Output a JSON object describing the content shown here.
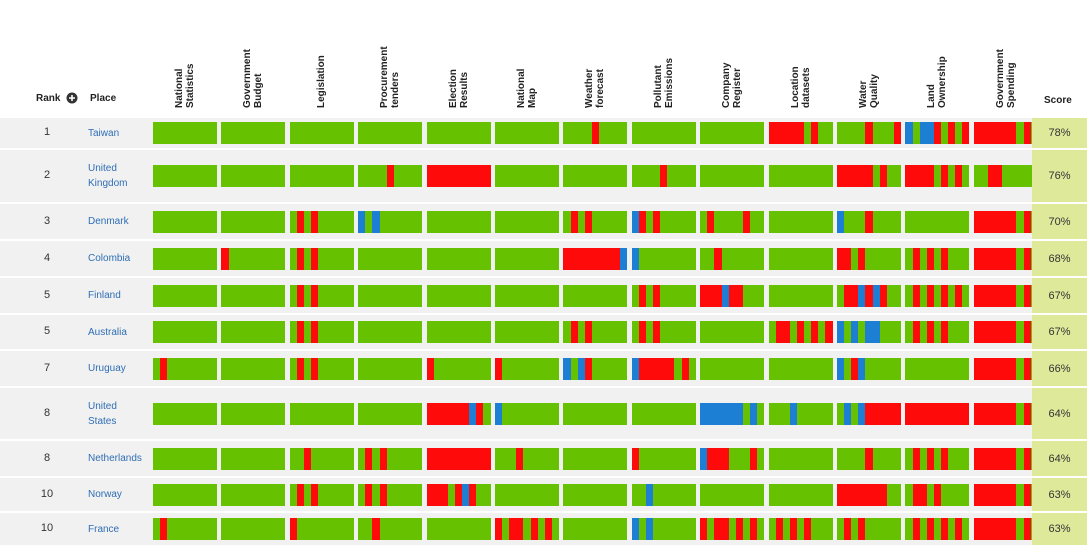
{
  "header": {
    "rank": "Rank",
    "place": "Place",
    "score": "Score",
    "columns": [
      [
        "National",
        "Statistics"
      ],
      [
        "Government",
        "Budget"
      ],
      [
        "Legislation"
      ],
      [
        "Procurement",
        "tenders"
      ],
      [
        "Election",
        "Results"
      ],
      [
        "National",
        "Map"
      ],
      [
        "Weather",
        "forecast"
      ],
      [
        "Pollutant",
        "Emissions"
      ],
      [
        "Company",
        "Register"
      ],
      [
        "Location",
        "datasets"
      ],
      [
        "Water",
        "Quality"
      ],
      [
        "Land",
        "Ownership"
      ],
      [
        "Government",
        "Spending"
      ]
    ]
  },
  "palette": {
    "g": "#66c200",
    "r": "#ff0a0a",
    "b": "#1d7fd3"
  },
  "table": {
    "rows": [
      {
        "rank": 1,
        "place": "Taiwan",
        "score": "78%",
        "cells": [
          "ggggggggg",
          "ggggggggg",
          "ggggggggg",
          "ggggggggg",
          "ggggggggg",
          "ggggggggg",
          "ggggrgggg",
          "ggggggggg",
          "ggggggggg",
          "rrrrrgrgg",
          "ggggrgggr",
          "bgbbrgrgr",
          "rrrrrrgrg"
        ]
      },
      {
        "rank": 2,
        "place": "United Kingdom",
        "score": "76%",
        "cells": [
          "ggggggggg",
          "ggggggggg",
          "ggggggggg",
          "ggggrgggg",
          "rrrrrrrrr",
          "ggggggggg",
          "ggggggggg",
          "ggggrgggg",
          "ggggggggg",
          "ggggggggg",
          "rrrrrgrgg",
          "rrrrgrgrg",
          "ggrrggggg"
        ]
      },
      {
        "rank": 3,
        "place": "Denmark",
        "score": "70%",
        "cells": [
          "ggggggggg",
          "ggggggggg",
          "grgrggggg",
          "bgbgggggg",
          "ggggggggg",
          "ggggggggg",
          "grgrggggg",
          "brgrggggg",
          "grggggrgg",
          "ggggggggg",
          "bgggrgggg",
          "ggggggggg",
          "rrrrrrgrg"
        ]
      },
      {
        "rank": 4,
        "place": "Colombia",
        "score": "68%",
        "cells": [
          "ggggggggg",
          "rgggggggg",
          "grgrggggg",
          "ggggggggg",
          "ggggggggg",
          "ggggggggg",
          "rrrrrrrrb",
          "bgggggggg",
          "ggrgggggg",
          "ggggggggg",
          "rrgrggggg",
          "grgrgrggg",
          "rrrrrrgrg"
        ]
      },
      {
        "rank": 5,
        "place": "Finland",
        "score": "67%",
        "cells": [
          "ggggggggg",
          "ggggggggg",
          "grgrggggg",
          "ggggggggg",
          "ggggggggg",
          "ggggggggg",
          "ggggggggg",
          "grgrggggg",
          "rrrbrrggg",
          "ggggggggg",
          "grrbrbrgg",
          "grgrgrgrg",
          "rrrrrrgrg"
        ]
      },
      {
        "rank": 5,
        "place": "Australia",
        "score": "67%",
        "cells": [
          "ggggggggg",
          "ggggggggg",
          "grgrggggg",
          "ggggggggg",
          "ggggggggg",
          "ggggggggg",
          "grgrggggg",
          "grgrggggg",
          "ggggggggg",
          "grrgrgrgr",
          "bgbgbbggg",
          "grgrgrggg",
          "rrrrrrgrg"
        ]
      },
      {
        "rank": 7,
        "place": "Uruguay",
        "score": "66%",
        "cells": [
          "grggggggg",
          "ggggggggg",
          "grgrggggg",
          "ggggggggg",
          "rgggggggg",
          "rgggggggg",
          "bgbrggggg",
          "brrrrrgrg",
          "ggggggggg",
          "ggggggggg",
          "bgrbggggg",
          "ggggggggg",
          "rrrrrrgrg"
        ]
      },
      {
        "rank": 8,
        "place": "United States",
        "score": "64%",
        "cells": [
          "ggggggggg",
          "ggggggggg",
          "ggggggggg",
          "ggggggggg",
          "rrrrrrbrg",
          "bgggggggg",
          "ggggggggg",
          "ggggggggg",
          "bbbbbbgbg",
          "gggbggggg",
          "gbgbrrrrr",
          "rrrrrrrrr",
          "rrrrrrgrg"
        ]
      },
      {
        "rank": 8,
        "place": "Netherlands",
        "score": "64%",
        "cells": [
          "ggggggggg",
          "ggggggggg",
          "ggrgggggg",
          "grgrggggg",
          "rrrrrrrrr",
          "gggrggggg",
          "ggggggggg",
          "rgggggggg",
          "brrrgggrg",
          "ggggggggg",
          "ggggrgggg",
          "grgrgrggg",
          "rrrrrrgrg"
        ]
      },
      {
        "rank": 10,
        "place": "Norway",
        "score": "63%",
        "cells": [
          "ggggggggg",
          "ggggggggg",
          "grgrggggg",
          "grgrggggg",
          "rrrgrbrgg",
          "ggggggggg",
          "ggggggggg",
          "ggbgggggg",
          "ggggggggg",
          "ggggggggg",
          "rrrrrrrgg",
          "grrgrgggg",
          "rrrrrrgrg"
        ]
      },
      {
        "rank": 10,
        "place": "France",
        "score": "63%",
        "cells": [
          "grggggggg",
          "ggggggggg",
          "rgggggggg",
          "ggrgggggg",
          "ggggggggg",
          "rgrrgrgrg",
          "ggggggggg",
          "bgbgggggg",
          "rgrrgrgrg",
          "grgrgrggg",
          "grgrggggg",
          "grgrgrgrg",
          "rrrrrrgrg"
        ]
      }
    ]
  }
}
